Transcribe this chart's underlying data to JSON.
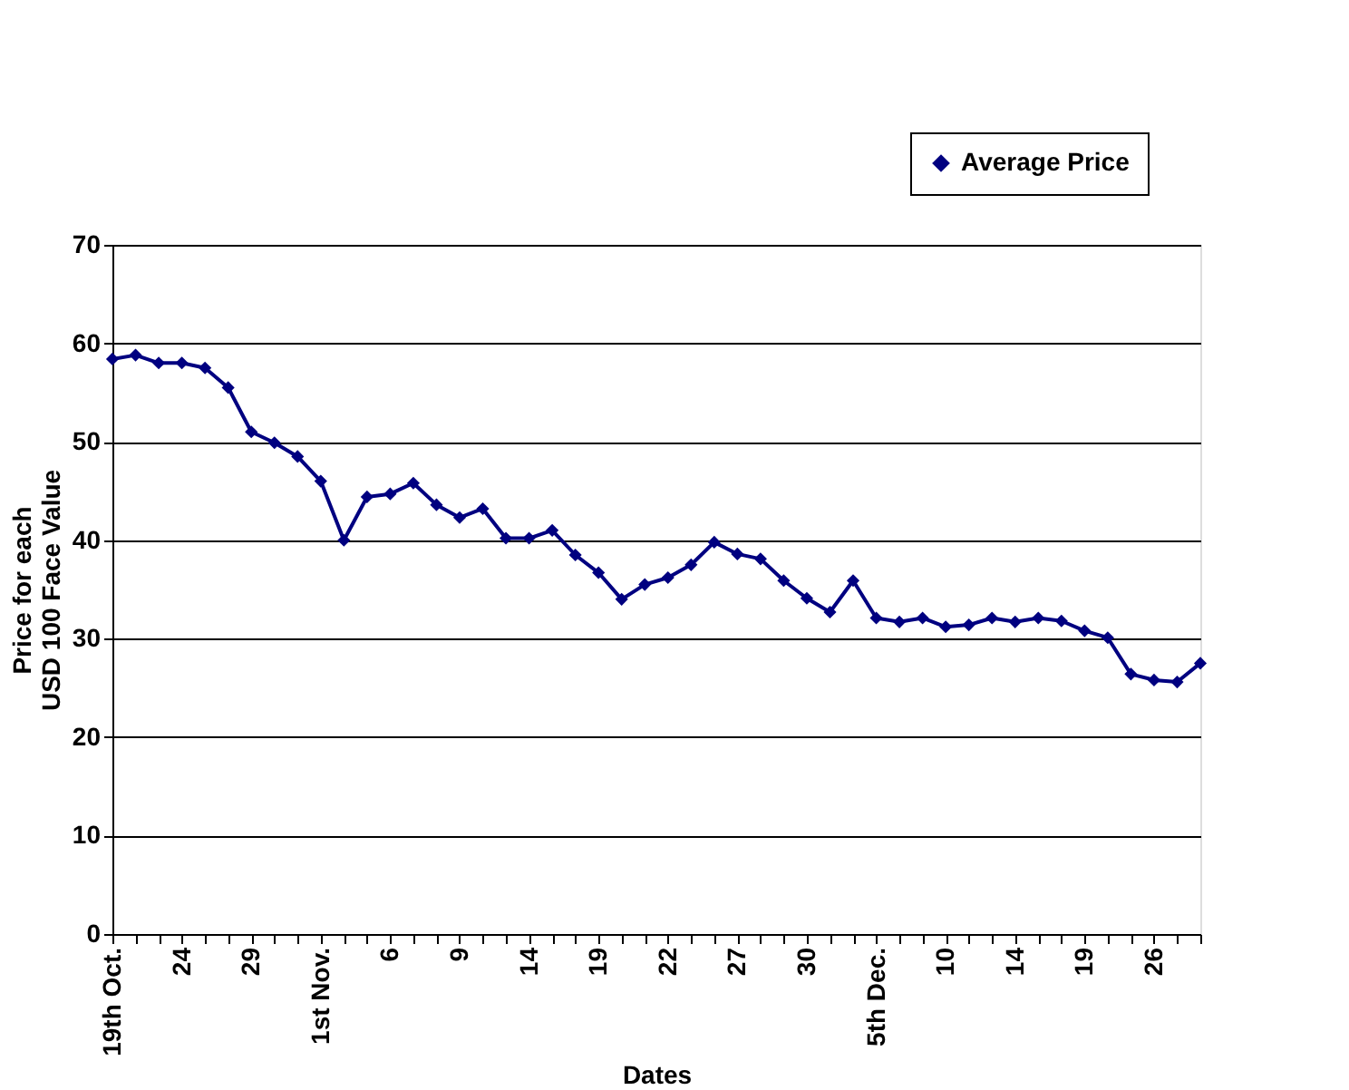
{
  "chart_data": {
    "type": "line",
    "xlabel": "Dates",
    "ylabel": "Price for each\nUSD 100 Face Value",
    "categories": [
      "19th Oct.",
      null,
      null,
      "24",
      null,
      null,
      "29",
      null,
      null,
      "1st Nov.",
      null,
      null,
      "6",
      null,
      null,
      "9",
      null,
      null,
      "14",
      null,
      null,
      "19",
      null,
      null,
      "22",
      null,
      null,
      "27",
      null,
      null,
      "30",
      null,
      null,
      "5th Dec.",
      null,
      null,
      "10",
      null,
      null,
      "14",
      null,
      null,
      "19",
      null,
      null,
      "26",
      null,
      null
    ],
    "series": [
      {
        "name": "Average Price",
        "color": "#000080",
        "values": [
          58.4,
          58.8,
          58.0,
          58.0,
          57.5,
          55.5,
          51.0,
          49.9,
          48.5,
          46.0,
          40.0,
          44.4,
          44.7,
          45.8,
          43.6,
          42.3,
          43.2,
          40.2,
          40.2,
          41.0,
          38.5,
          36.7,
          34.0,
          35.5,
          36.2,
          37.5,
          39.8,
          38.6,
          38.1,
          35.9,
          34.1,
          32.7,
          35.9,
          32.1,
          31.7,
          32.1,
          31.2,
          31.4,
          32.1,
          31.7,
          32.1,
          31.8,
          30.8,
          30.1,
          26.4,
          25.8,
          25.6,
          27.5
        ]
      }
    ],
    "ylim": [
      0,
      70
    ],
    "yticks": [
      0,
      10,
      20,
      30,
      40,
      50,
      60,
      70
    ],
    "grid": "y",
    "legend": "top right",
    "marker": "diamond",
    "line_style": "solid"
  }
}
